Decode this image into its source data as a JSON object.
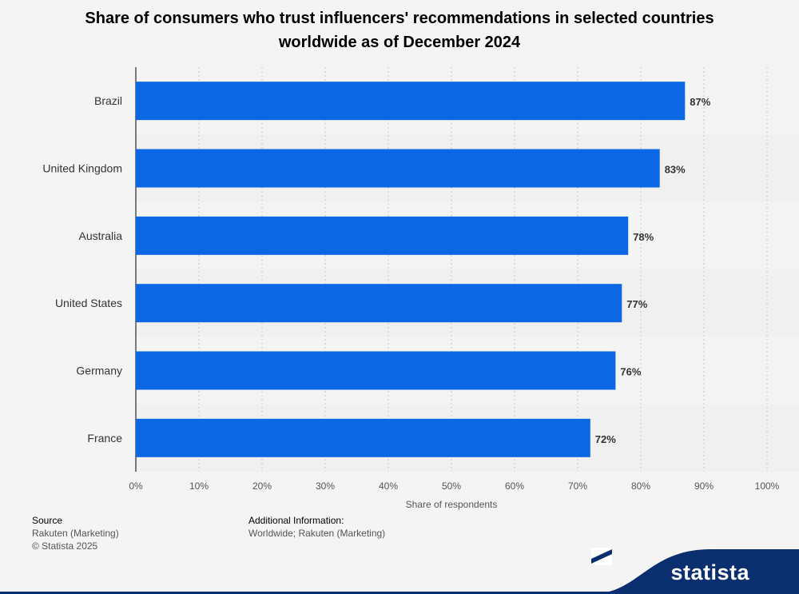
{
  "title": "Share of consumers who trust influencers' recommendations in selected countries worldwide as of December 2024",
  "chart_data": {
    "type": "bar",
    "orientation": "horizontal",
    "categories": [
      "Brazil",
      "United Kingdom",
      "Australia",
      "United States",
      "Germany",
      "France"
    ],
    "values": [
      87,
      83,
      78,
      77,
      76,
      72
    ],
    "value_labels": [
      "87%",
      "83%",
      "78%",
      "77%",
      "76%",
      "72%"
    ],
    "xlabel": "Share of respondents",
    "ylabel": "",
    "xlim": [
      0,
      100
    ],
    "x_ticks": [
      "0%",
      "10%",
      "20%",
      "30%",
      "40%",
      "50%",
      "60%",
      "70%",
      "80%",
      "90%",
      "100%"
    ],
    "grid": true,
    "bar_color": "#0b67e4"
  },
  "footer": {
    "source_head": "Source",
    "source_line1": "Rakuten (Marketing)",
    "source_line2": "© Statista 2025",
    "info_head": "Additional Information:",
    "info_line1": "Worldwide; Rakuten (Marketing)"
  },
  "brand": {
    "name": "statista",
    "icon": "statista-logo-icon",
    "color": "#0a2e6e"
  }
}
